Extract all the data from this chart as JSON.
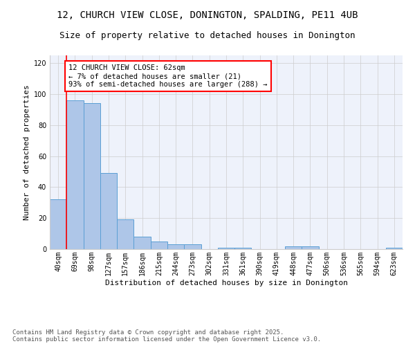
{
  "title_line1": "12, CHURCH VIEW CLOSE, DONINGTON, SPALDING, PE11 4UB",
  "title_line2": "Size of property relative to detached houses in Donington",
  "xlabel": "Distribution of detached houses by size in Donington",
  "ylabel": "Number of detached properties",
  "categories": [
    "40sqm",
    "69sqm",
    "98sqm",
    "127sqm",
    "157sqm",
    "186sqm",
    "215sqm",
    "244sqm",
    "273sqm",
    "302sqm",
    "331sqm",
    "361sqm",
    "390sqm",
    "419sqm",
    "448sqm",
    "477sqm",
    "506sqm",
    "536sqm",
    "565sqm",
    "594sqm",
    "623sqm"
  ],
  "values": [
    32,
    96,
    94,
    49,
    19,
    8,
    5,
    3,
    3,
    0,
    1,
    1,
    0,
    0,
    2,
    2,
    0,
    0,
    0,
    0,
    1
  ],
  "bar_color": "#aec6e8",
  "bar_edge_color": "#5a9fd4",
  "red_line_x": 0.5,
  "ylim": [
    0,
    125
  ],
  "yticks": [
    0,
    20,
    40,
    60,
    80,
    100,
    120
  ],
  "grid_color": "#cccccc",
  "background_color": "#eef2fb",
  "footer_text": "Contains HM Land Registry data © Crown copyright and database right 2025.\nContains public sector information licensed under the Open Government Licence v3.0.",
  "annotation_text_line1": "12 CHURCH VIEW CLOSE: 62sqm",
  "annotation_text_line2": "← 7% of detached houses are smaller (21)",
  "annotation_text_line3": "93% of semi-detached houses are larger (288) →",
  "title_fontsize": 10,
  "subtitle_fontsize": 9,
  "label_fontsize": 8,
  "tick_fontsize": 7,
  "annotation_fontsize": 7.5,
  "footer_fontsize": 6.5
}
